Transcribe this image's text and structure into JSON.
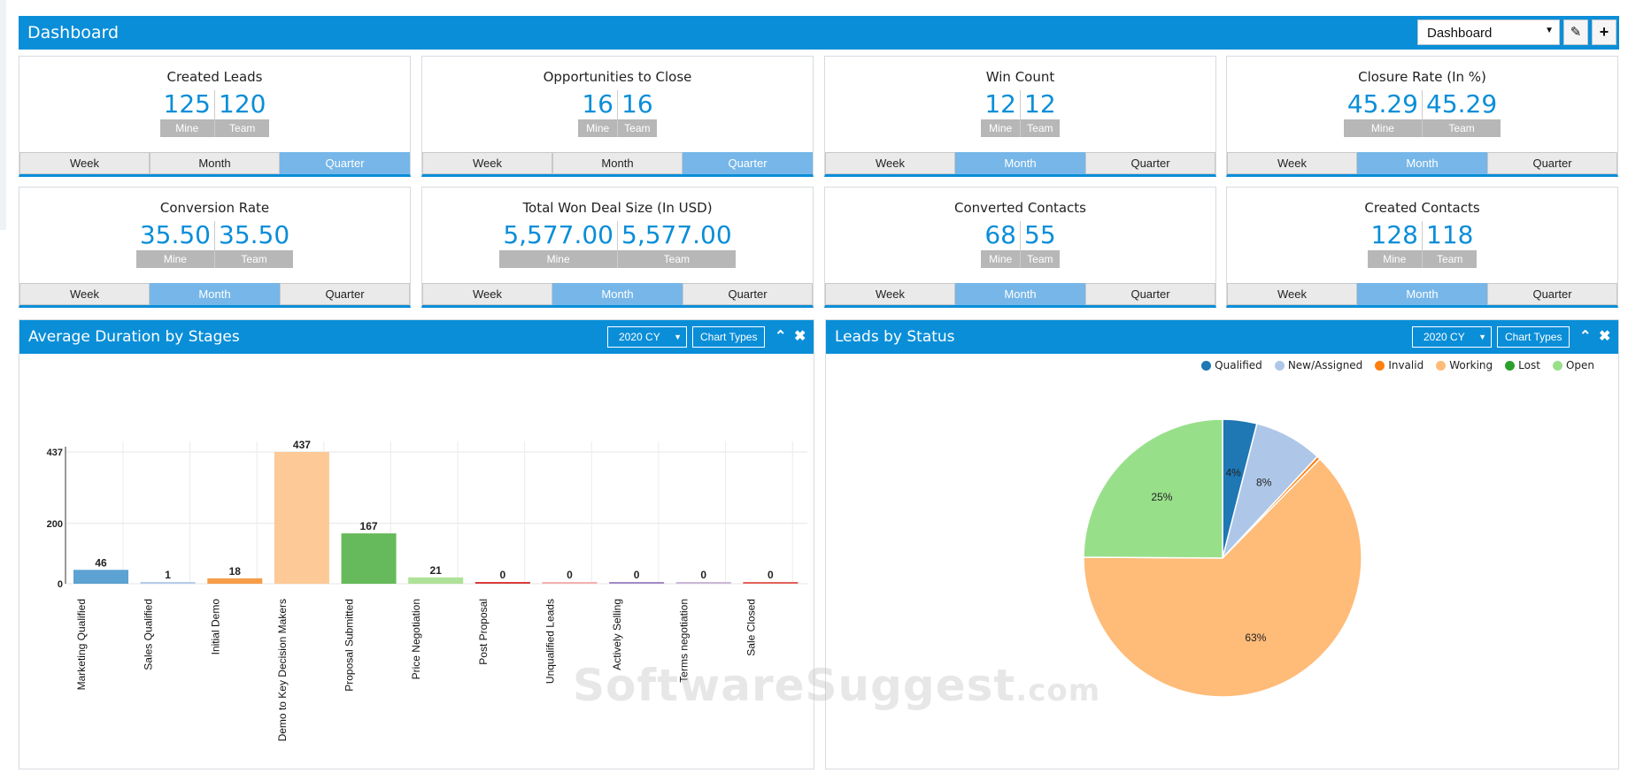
{
  "header": {
    "title": "Dashboard",
    "dashboard_select": "Dashboard",
    "edit_icon": "edit-icon",
    "add_icon": "plus-icon"
  },
  "colors": {
    "accent": "#0a8ed8",
    "metric_value": "#0a8ed8",
    "period_active": "#76b6e8"
  },
  "period_labels": [
    "Week",
    "Month",
    "Quarter"
  ],
  "cards": [
    {
      "title": "Created Leads",
      "mine": "125",
      "team": "120",
      "mine_label": "Mine",
      "team_label": "Team",
      "active_period": "Quarter"
    },
    {
      "title": "Opportunities to Close",
      "mine": "16",
      "team": "16",
      "mine_label": "Mine",
      "team_label": "Team",
      "active_period": "Quarter"
    },
    {
      "title": "Win Count",
      "mine": "12",
      "team": "12",
      "mine_label": "Mine",
      "team_label": "Team",
      "active_period": "Month"
    },
    {
      "title": "Closure Rate (In %)",
      "mine": "45.29",
      "team": "45.29",
      "mine_label": "Mine",
      "team_label": "Team",
      "active_period": "Month"
    },
    {
      "title": "Conversion Rate",
      "mine": "35.50",
      "team": "35.50",
      "mine_label": "Mine",
      "team_label": "Team",
      "active_period": "Month"
    },
    {
      "title": "Total Won Deal Size (In USD)",
      "mine": "5,577.00",
      "team": "5,577.00",
      "mine_label": "Mine",
      "team_label": "Team",
      "active_period": "Month"
    },
    {
      "title": "Converted Contacts",
      "mine": "68",
      "team": "55",
      "mine_label": "Mine",
      "team_label": "Team",
      "active_period": "Month"
    },
    {
      "title": "Created Contacts",
      "mine": "128",
      "team": "118",
      "mine_label": "Mine",
      "team_label": "Team",
      "active_period": "Month"
    }
  ],
  "panels": {
    "stages": {
      "title": "Average Duration by Stages",
      "year_select": "2020 CY",
      "chart_types_label": "Chart Types"
    },
    "status": {
      "title": "Leads by Status",
      "year_select": "2020 CY",
      "chart_types_label": "Chart Types"
    }
  },
  "watermark": {
    "main": "SoftwareSuggest",
    "suffix": ".com"
  },
  "chart_data": [
    {
      "type": "bar",
      "title": "Average Duration by Stages",
      "categories": [
        "Marketing Qualified",
        "Sales Qualified",
        "Initial Demo",
        "Demo to Key Decision Makers",
        "Proposal Submitted",
        "Price Negotiation",
        "Post Proposal",
        "Unqualified Leads",
        "Actively Selling",
        "Terms negotiation",
        "Sale Closed"
      ],
      "values": [
        46,
        1,
        18,
        437,
        167,
        21,
        0,
        0,
        0,
        0,
        0
      ],
      "colors": [
        "#4a98cd",
        "#aec7e8",
        "#f59235",
        "#fdc38c",
        "#56b24a",
        "#a6df8e",
        "#d62728",
        "#f4a7a6",
        "#9a7fc0",
        "#c5b0d5",
        "#e2504a"
      ],
      "ylim": [
        0,
        437
      ],
      "yticks": [
        0,
        200,
        437
      ],
      "grid": true
    },
    {
      "type": "pie",
      "title": "Leads by Status",
      "labels": [
        "Qualified",
        "New/Assigned",
        "Invalid",
        "Working",
        "Lost",
        "Open"
      ],
      "values": [
        4,
        8,
        0.4,
        63,
        0,
        25
      ],
      "slice_labels": [
        "4%",
        "8%",
        "",
        "63%",
        "",
        "25%"
      ],
      "colors": [
        "#1f77b4",
        "#aec7e8",
        "#ff7f0e",
        "#ffbb78",
        "#2ca02c",
        "#98df8a"
      ],
      "legend": "top-right"
    }
  ]
}
